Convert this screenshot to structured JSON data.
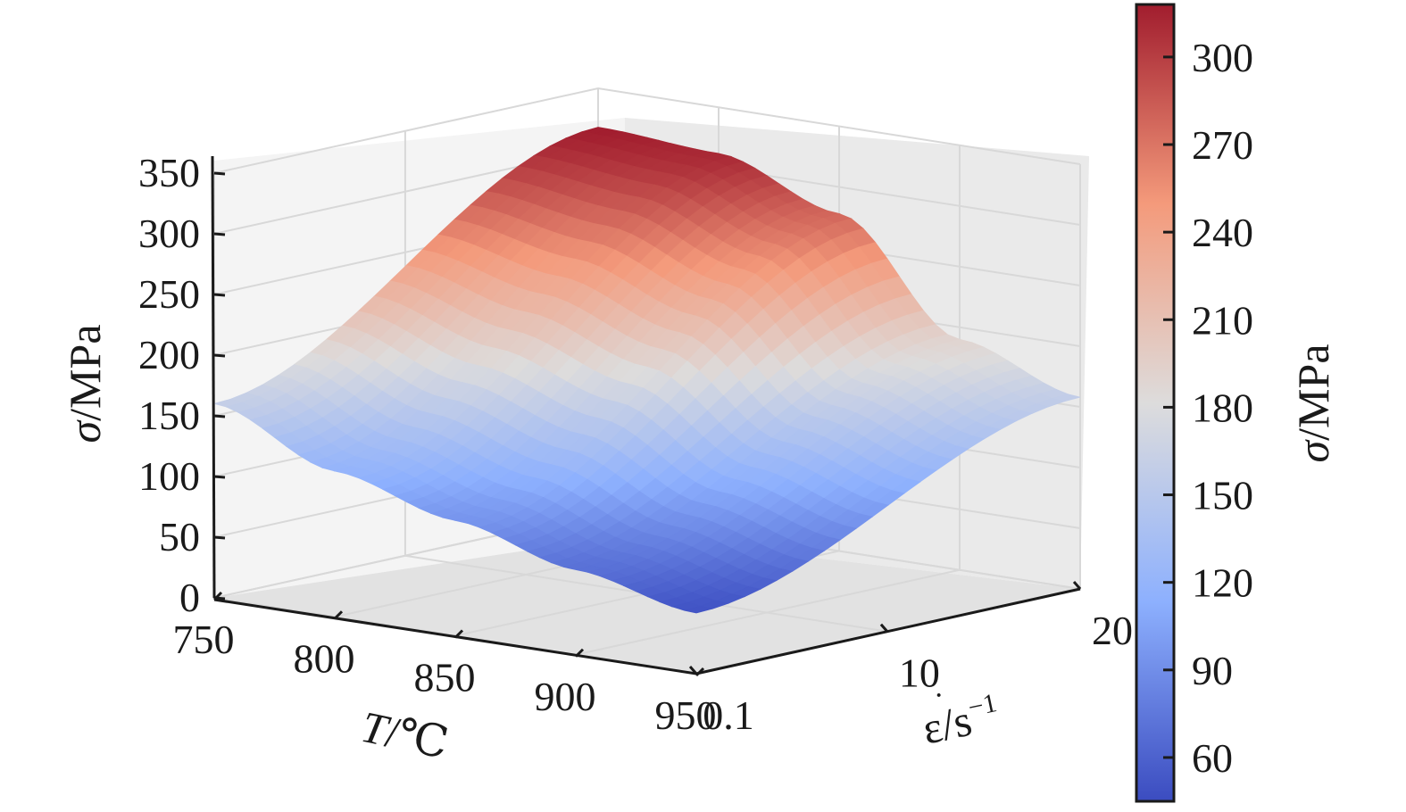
{
  "chart_data": {
    "type": "surface3d",
    "x": {
      "label_italic": "T",
      "label_rest": "/℃",
      "ticks": [
        750,
        800,
        850,
        900,
        950
      ],
      "range": [
        750,
        950
      ]
    },
    "y": {
      "label_base": "ε",
      "label_unit": "/s",
      "label_sup": "−1",
      "ticks": [
        "0.1",
        "10",
        "20"
      ],
      "tick_values": [
        0.1,
        10,
        20
      ],
      "range": [
        0.1,
        20
      ]
    },
    "z": {
      "label_italic": "σ",
      "label_rest": "/MPa",
      "ticks": [
        0,
        50,
        100,
        150,
        200,
        250,
        300,
        350
      ],
      "range": [
        0,
        350
      ]
    },
    "colorbar": {
      "label_italic": "σ",
      "label_rest": "/MPa",
      "ticks": [
        60,
        90,
        120,
        150,
        180,
        210,
        240,
        270,
        300
      ],
      "range": [
        45,
        318
      ],
      "colormap": "coolwarm"
    },
    "surface_edges": {
      "T": [
        750,
        800,
        850,
        900,
        950
      ],
      "stress_at_max_strain_rate": [
        318,
        312,
        278,
        190,
        158
      ],
      "stress_at_min_strain_rate": [
        160,
        120,
        95,
        70,
        50
      ]
    },
    "grid": true
  }
}
